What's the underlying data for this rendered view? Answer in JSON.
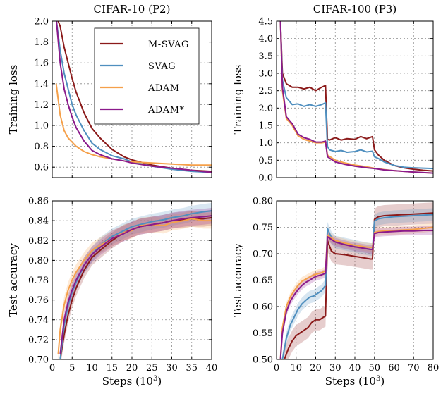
{
  "chart_data": [
    {
      "type": "line",
      "title": "CIFAR-10 (P2)",
      "xlabel": "",
      "ylabel": "Training loss",
      "xlim": [
        0,
        40
      ],
      "ylim": [
        0.5,
        2.0
      ],
      "xticks": [
        0,
        5,
        10,
        15,
        20,
        25,
        30,
        35,
        40
      ],
      "xtick_labels": [
        "",
        "",
        "",
        "",
        "",
        "",
        "",
        "",
        ""
      ],
      "yticks": [
        0.6,
        0.8,
        1.0,
        1.2,
        1.4,
        1.6,
        1.8,
        2.0
      ],
      "ytick_labels": [
        "0.6",
        "0.8",
        "1.0",
        "1.2",
        "1.4",
        "1.6",
        "1.8",
        "2.0"
      ],
      "grid": true,
      "legend": "top-right",
      "series": [
        {
          "name": "M-SVAG",
          "color": "#8b1a1a",
          "x": [
            1,
            2,
            3,
            4,
            5,
            6,
            8,
            10,
            12,
            15,
            18,
            20,
            25,
            30,
            35,
            40
          ],
          "y": [
            2.05,
            1.95,
            1.75,
            1.6,
            1.45,
            1.32,
            1.12,
            0.97,
            0.88,
            0.77,
            0.7,
            0.67,
            0.62,
            0.59,
            0.57,
            0.56
          ]
        },
        {
          "name": "SVAG",
          "color": "#4f8fbf",
          "x": [
            1,
            2,
            3,
            4,
            5,
            6,
            8,
            10,
            12,
            15,
            18,
            20,
            25,
            30,
            35,
            40
          ],
          "y": [
            2.02,
            1.72,
            1.5,
            1.35,
            1.2,
            1.1,
            0.95,
            0.83,
            0.77,
            0.71,
            0.68,
            0.65,
            0.61,
            0.58,
            0.56,
            0.55
          ]
        },
        {
          "name": "ADAM",
          "color": "#f5a04a",
          "x": [
            1,
            2,
            3,
            4,
            5,
            6,
            8,
            10,
            12,
            15,
            18,
            20,
            25,
            30,
            35,
            40
          ],
          "y": [
            1.4,
            1.1,
            0.95,
            0.88,
            0.84,
            0.8,
            0.75,
            0.72,
            0.7,
            0.68,
            0.66,
            0.65,
            0.64,
            0.63,
            0.62,
            0.62
          ]
        },
        {
          "name": "ADAM*",
          "color": "#8b1a8b",
          "x": [
            1,
            2,
            3,
            4,
            5,
            6,
            8,
            10,
            12,
            15,
            18,
            20,
            25,
            30,
            35,
            40
          ],
          "y": [
            2.03,
            1.6,
            1.35,
            1.2,
            1.08,
            0.98,
            0.85,
            0.76,
            0.72,
            0.68,
            0.66,
            0.64,
            0.61,
            0.59,
            0.57,
            0.55
          ]
        }
      ]
    },
    {
      "type": "line",
      "title": "CIFAR-100 (P3)",
      "xlabel": "",
      "ylabel": "Training loss",
      "xlim": [
        0,
        80
      ],
      "ylim": [
        0,
        4.5
      ],
      "xticks": [
        0,
        10,
        20,
        30,
        40,
        50,
        60,
        70,
        80
      ],
      "xtick_labels": [
        "",
        "",
        "",
        "",
        "",
        "",
        "",
        "",
        ""
      ],
      "yticks": [
        0.0,
        0.5,
        1.0,
        1.5,
        2.0,
        2.5,
        3.0,
        3.5,
        4.0,
        4.5
      ],
      "ytick_labels": [
        "0.0",
        "0.5",
        "1.0",
        "1.5",
        "2.0",
        "2.5",
        "3.0",
        "3.5",
        "4.0",
        "4.5"
      ],
      "grid": true,
      "series": [
        {
          "name": "M-SVAG",
          "color": "#8b1a1a",
          "x": [
            2,
            3,
            5,
            8,
            11,
            14,
            17,
            20,
            23,
            25,
            26,
            27,
            30,
            33,
            36,
            40,
            43,
            46,
            49,
            50,
            52,
            55,
            60,
            65,
            70,
            75,
            80
          ],
          "y": [
            4.5,
            3.0,
            2.7,
            2.6,
            2.6,
            2.55,
            2.6,
            2.5,
            2.6,
            2.65,
            1.1,
            1.08,
            1.15,
            1.08,
            1.12,
            1.1,
            1.18,
            1.12,
            1.18,
            0.8,
            0.65,
            0.5,
            0.35,
            0.28,
            0.24,
            0.21,
            0.19
          ]
        },
        {
          "name": "SVAG",
          "color": "#4f8fbf",
          "x": [
            2,
            3,
            5,
            8,
            11,
            14,
            17,
            20,
            23,
            25,
            26,
            27,
            30,
            33,
            36,
            40,
            43,
            46,
            49,
            50,
            52,
            55,
            60,
            65,
            70,
            75,
            80
          ],
          "y": [
            4.5,
            2.8,
            2.3,
            2.1,
            2.12,
            2.05,
            2.1,
            2.05,
            2.1,
            2.15,
            0.9,
            0.8,
            0.75,
            0.78,
            0.73,
            0.75,
            0.8,
            0.74,
            0.76,
            0.6,
            0.55,
            0.45,
            0.35,
            0.3,
            0.28,
            0.27,
            0.26
          ]
        },
        {
          "name": "ADAM",
          "color": "#f5a04a",
          "x": [
            2,
            3,
            5,
            8,
            11,
            14,
            17,
            20,
            23,
            25,
            26,
            30,
            35,
            40,
            45,
            50,
            55,
            60,
            70,
            80
          ],
          "y": [
            4.5,
            2.5,
            1.7,
            1.5,
            1.2,
            1.1,
            1.05,
            1.0,
            1.0,
            1.02,
            0.65,
            0.5,
            0.42,
            0.36,
            0.32,
            0.27,
            0.23,
            0.2,
            0.16,
            0.13
          ]
        },
        {
          "name": "ADAM*",
          "color": "#8b1a8b",
          "x": [
            2,
            3,
            5,
            8,
            11,
            14,
            17,
            20,
            23,
            25,
            26,
            30,
            35,
            40,
            45,
            50,
            55,
            60,
            70,
            80
          ],
          "y": [
            4.5,
            2.6,
            1.75,
            1.55,
            1.25,
            1.15,
            1.1,
            1.02,
            1.02,
            1.05,
            0.6,
            0.45,
            0.38,
            0.33,
            0.29,
            0.26,
            0.22,
            0.2,
            0.16,
            0.13
          ]
        }
      ]
    },
    {
      "type": "line",
      "title": "",
      "xlabel": "Steps (10",
      "xlabel_sup": "3",
      "xlabel_end": ")",
      "ylabel": "Test accuracy",
      "xlim": [
        0,
        40
      ],
      "ylim": [
        0.7,
        0.86
      ],
      "xticks": [
        0,
        5,
        10,
        15,
        20,
        25,
        30,
        35,
        40
      ],
      "xtick_labels": [
        "0",
        "5",
        "10",
        "15",
        "20",
        "25",
        "30",
        "35",
        "40"
      ],
      "yticks": [
        0.7,
        0.72,
        0.74,
        0.76,
        0.78,
        0.8,
        0.82,
        0.84,
        0.86
      ],
      "ytick_labels": [
        "0.70",
        "0.72",
        "0.74",
        "0.76",
        "0.78",
        "0.80",
        "0.82",
        "0.84",
        "0.86"
      ],
      "grid": true,
      "series": [
        {
          "name": "M-SVAG",
          "color": "#8b1a1a",
          "band": 0.008,
          "x": [
            2,
            3,
            4,
            5,
            6,
            8,
            10,
            12,
            15,
            18,
            20,
            22,
            25,
            28,
            30,
            33,
            35,
            38,
            40
          ],
          "y": [
            0.7,
            0.725,
            0.745,
            0.76,
            0.772,
            0.79,
            0.803,
            0.81,
            0.82,
            0.828,
            0.831,
            0.834,
            0.836,
            0.838,
            0.84,
            0.841,
            0.842,
            0.842,
            0.843
          ]
        },
        {
          "name": "SVAG",
          "color": "#4f8fbf",
          "band": 0.008,
          "x": [
            2,
            3,
            4,
            5,
            6,
            8,
            10,
            12,
            15,
            18,
            20,
            22,
            25,
            28,
            30,
            33,
            35,
            38,
            40
          ],
          "y": [
            0.7,
            0.735,
            0.755,
            0.768,
            0.778,
            0.795,
            0.806,
            0.815,
            0.824,
            0.83,
            0.834,
            0.836,
            0.839,
            0.841,
            0.843,
            0.845,
            0.847,
            0.849,
            0.85
          ]
        },
        {
          "name": "ADAM",
          "color": "#f5a04a",
          "band": 0.008,
          "x": [
            1.5,
            2,
            3,
            4,
            5,
            6,
            8,
            10,
            12,
            15,
            18,
            20,
            22,
            25,
            28,
            30,
            33,
            35,
            38,
            40
          ],
          "y": [
            0.705,
            0.73,
            0.755,
            0.77,
            0.78,
            0.788,
            0.8,
            0.81,
            0.815,
            0.822,
            0.828,
            0.83,
            0.835,
            0.836,
            0.835,
            0.838,
            0.84,
            0.842,
            0.84,
            0.84
          ]
        },
        {
          "name": "ADAM*",
          "color": "#8b1a8b",
          "band": 0.008,
          "x": [
            2,
            3,
            4,
            5,
            6,
            8,
            10,
            12,
            15,
            18,
            20,
            22,
            25,
            28,
            30,
            33,
            35,
            38,
            40
          ],
          "y": [
            0.705,
            0.74,
            0.758,
            0.77,
            0.78,
            0.795,
            0.806,
            0.813,
            0.822,
            0.827,
            0.831,
            0.834,
            0.836,
            0.838,
            0.84,
            0.842,
            0.843,
            0.844,
            0.845
          ]
        }
      ]
    },
    {
      "type": "line",
      "title": "",
      "xlabel": "Steps (10",
      "xlabel_sup": "3",
      "xlabel_end": ")",
      "ylabel": "Test accuracy",
      "xlim": [
        0,
        80
      ],
      "ylim": [
        0.5,
        0.8
      ],
      "xticks": [
        0,
        10,
        20,
        30,
        40,
        50,
        60,
        70,
        80
      ],
      "xtick_labels": [
        "0",
        "10",
        "20",
        "30",
        "40",
        "50",
        "60",
        "70",
        "80"
      ],
      "yticks": [
        0.5,
        0.55,
        0.6,
        0.65,
        0.7,
        0.75,
        0.8
      ],
      "ytick_labels": [
        "0.50",
        "0.55",
        "0.60",
        "0.65",
        "0.70",
        "0.75",
        "0.80"
      ],
      "grid": true,
      "series": [
        {
          "name": "M-SVAG",
          "color": "#8b1a1a",
          "band": 0.02,
          "x": [
            4,
            6,
            8,
            10,
            12,
            14,
            16,
            18,
            20,
            22,
            24,
            25,
            26,
            28,
            30,
            35,
            40,
            45,
            48,
            49,
            50,
            52,
            55,
            60,
            65,
            70,
            75,
            80
          ],
          "y": [
            0.5,
            0.52,
            0.535,
            0.545,
            0.55,
            0.555,
            0.56,
            0.57,
            0.575,
            0.575,
            0.58,
            0.582,
            0.725,
            0.705,
            0.7,
            0.698,
            0.695,
            0.692,
            0.69,
            0.69,
            0.765,
            0.77,
            0.772,
            0.773,
            0.774,
            0.775,
            0.776,
            0.777
          ]
        },
        {
          "name": "SVAG",
          "color": "#4f8fbf",
          "band": 0.012,
          "x": [
            3,
            5,
            7,
            9,
            11,
            13,
            15,
            17,
            19,
            21,
            23,
            24,
            25,
            26,
            28,
            30,
            35,
            40,
            45,
            48,
            49,
            50,
            52,
            55,
            60,
            65,
            70,
            75,
            80
          ],
          "y": [
            0.5,
            0.54,
            0.565,
            0.58,
            0.595,
            0.605,
            0.612,
            0.618,
            0.62,
            0.625,
            0.63,
            0.635,
            0.64,
            0.748,
            0.73,
            0.722,
            0.718,
            0.714,
            0.71,
            0.708,
            0.708,
            0.762,
            0.766,
            0.768,
            0.77,
            0.771,
            0.772,
            0.773,
            0.774
          ]
        },
        {
          "name": "ADAM",
          "color": "#f5a04a",
          "band": 0.008,
          "x": [
            2,
            3,
            5,
            7,
            9,
            11,
            13,
            15,
            17,
            19,
            21,
            23,
            25,
            26,
            28,
            30,
            35,
            40,
            45,
            48,
            49,
            50,
            52,
            55,
            60,
            65,
            70,
            75,
            80
          ],
          "y": [
            0.5,
            0.56,
            0.6,
            0.618,
            0.63,
            0.64,
            0.648,
            0.652,
            0.656,
            0.66,
            0.662,
            0.664,
            0.668,
            0.735,
            0.73,
            0.725,
            0.72,
            0.716,
            0.713,
            0.712,
            0.712,
            0.74,
            0.742,
            0.743,
            0.744,
            0.745,
            0.746,
            0.748,
            0.75
          ]
        },
        {
          "name": "ADAM*",
          "color": "#8b1a8b",
          "band": 0.008,
          "x": [
            2,
            3,
            5,
            7,
            9,
            11,
            13,
            15,
            17,
            19,
            21,
            23,
            25,
            26,
            28,
            30,
            35,
            40,
            45,
            48,
            49,
            50,
            52,
            55,
            60,
            65,
            70,
            75,
            80
          ],
          "y": [
            0.5,
            0.55,
            0.59,
            0.61,
            0.622,
            0.632,
            0.64,
            0.646,
            0.65,
            0.655,
            0.658,
            0.66,
            0.663,
            0.732,
            0.727,
            0.722,
            0.717,
            0.713,
            0.71,
            0.708,
            0.708,
            0.738,
            0.74,
            0.741,
            0.742,
            0.743,
            0.743,
            0.744,
            0.744
          ]
        }
      ]
    }
  ]
}
